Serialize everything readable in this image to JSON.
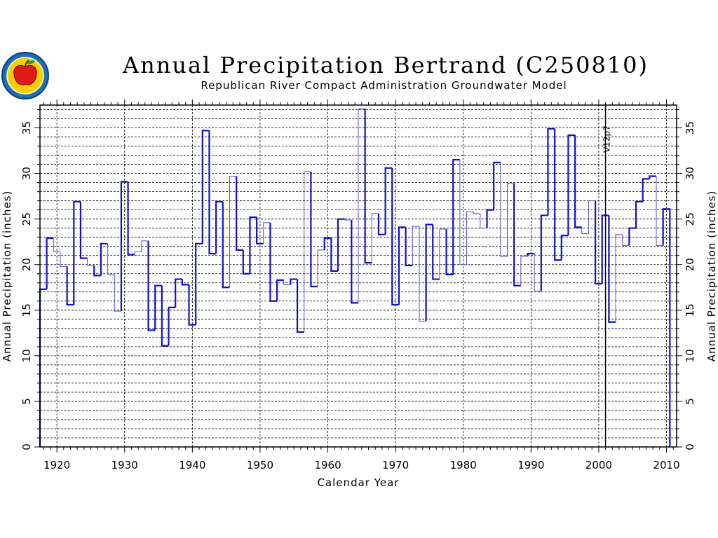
{
  "title": "Annual Precipitation Bertrand (C250810)",
  "subtitle": "Republican River Compact Administration Groundwater Model",
  "logo": {
    "name": "apple-logo-seal",
    "colors": {
      "ring": "#1a6fb5",
      "center": "#f5d000",
      "apple": "#e01b1b"
    }
  },
  "colors": {
    "series_thick": "#1010c8",
    "series_thin": "#5050d0",
    "grid": "#000000"
  },
  "chart_data": {
    "type": "line",
    "style": "step",
    "title": "Annual Precipitation Bertrand (C250810)",
    "subtitle": "Republican River Compact Administration Groundwater Model",
    "xlabel": "Calendar Year",
    "ylabel": "Annual Precipitation (inches)",
    "xlim": [
      1917.5,
      2011.5
    ],
    "ylim": [
      0,
      37.5
    ],
    "x_ticks": [
      1920,
      1930,
      1940,
      1950,
      1960,
      1970,
      1980,
      1990,
      2000,
      2010
    ],
    "x_tick_labels": [
      "1920",
      "1930",
      "1940",
      "1950",
      "1960",
      "1970",
      "1980",
      "1990",
      "2000",
      "2010"
    ],
    "y_ticks": [
      0,
      5,
      10,
      15,
      20,
      25,
      30,
      35
    ],
    "y_tick_labels": [
      "0",
      "5",
      "10",
      "15",
      "20",
      "25",
      "30",
      "35"
    ],
    "grid": true,
    "annotation": {
      "label": "V12p7",
      "x": 2001
    },
    "series": [
      {
        "years": [
          1918,
          1919,
          1920,
          1921,
          1922,
          1923,
          1924,
          1925,
          1926,
          1927,
          1928,
          1929,
          1930,
          1931,
          1932,
          1933,
          1934,
          1935,
          1936,
          1937,
          1938,
          1939,
          1940,
          1941,
          1942,
          1943,
          1944,
          1945,
          1946,
          1947,
          1948,
          1949,
          1950,
          1951,
          1952,
          1953,
          1954,
          1955,
          1956,
          1957,
          1958,
          1959,
          1960,
          1961,
          1962,
          1963,
          1964,
          1965,
          1966,
          1967,
          1968,
          1969,
          1970,
          1971,
          1972,
          1973,
          1974,
          1975,
          1976,
          1977,
          1978,
          1979,
          1980,
          1981,
          1982,
          1983,
          1984,
          1985,
          1986,
          1987,
          1988,
          1989,
          1990,
          1991,
          1992,
          1993,
          1994,
          1995,
          1996,
          1997,
          1998,
          1999,
          2000,
          2001,
          2002,
          2003,
          2004,
          2005,
          2006,
          2007,
          2008,
          2009,
          2010
        ],
        "values": [
          17.3,
          22.9,
          21.4,
          19.8,
          15.6,
          26.9,
          20.7,
          19.9,
          18.8,
          22.3,
          18.9,
          14.9,
          29.1,
          21.1,
          21.4,
          22.6,
          12.8,
          17.7,
          11.1,
          15.3,
          18.4,
          17.8,
          13.4,
          22.3,
          34.7,
          21.2,
          26.9,
          17.5,
          29.7,
          21.6,
          19.0,
          25.2,
          22.3,
          24.6,
          16.0,
          18.3,
          17.8,
          18.4,
          12.6,
          30.2,
          17.6,
          21.6,
          22.9,
          19.3,
          25.0,
          24.9,
          15.8,
          37.1,
          20.2,
          25.6,
          23.3,
          30.6,
          15.6,
          24.1,
          19.9,
          24.2,
          13.8,
          24.4,
          18.4,
          23.9,
          18.9,
          31.5,
          20.0,
          25.8,
          25.6,
          24.0,
          26.0,
          31.2,
          20.9,
          28.9,
          17.7,
          20.9,
          21.2,
          17.1,
          25.4,
          34.9,
          20.5,
          23.2,
          34.2,
          24.1,
          23.4,
          27.0,
          17.9,
          25.4,
          13.7,
          23.3,
          22.1,
          24.0,
          26.9,
          29.4,
          29.7,
          22.1,
          26.1
        ],
        "thin_years": [
          1920,
          1921,
          1925,
          1928,
          1929,
          1932,
          1933,
          1946,
          1951,
          1954,
          1957,
          1959,
          1963,
          1965,
          1967,
          1973,
          1974,
          1977,
          1980,
          1981,
          1982,
          1983,
          1986,
          1987,
          1989,
          1991,
          1998,
          1999,
          2003,
          2004,
          2009
        ]
      }
    ]
  }
}
